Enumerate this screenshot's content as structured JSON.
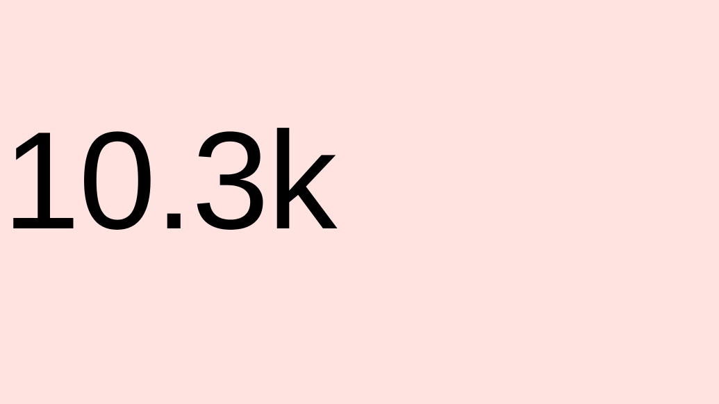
{
  "stat": {
    "value": "10.3k"
  },
  "colors": {
    "background": "#ffe3e1",
    "text": "#000000"
  }
}
